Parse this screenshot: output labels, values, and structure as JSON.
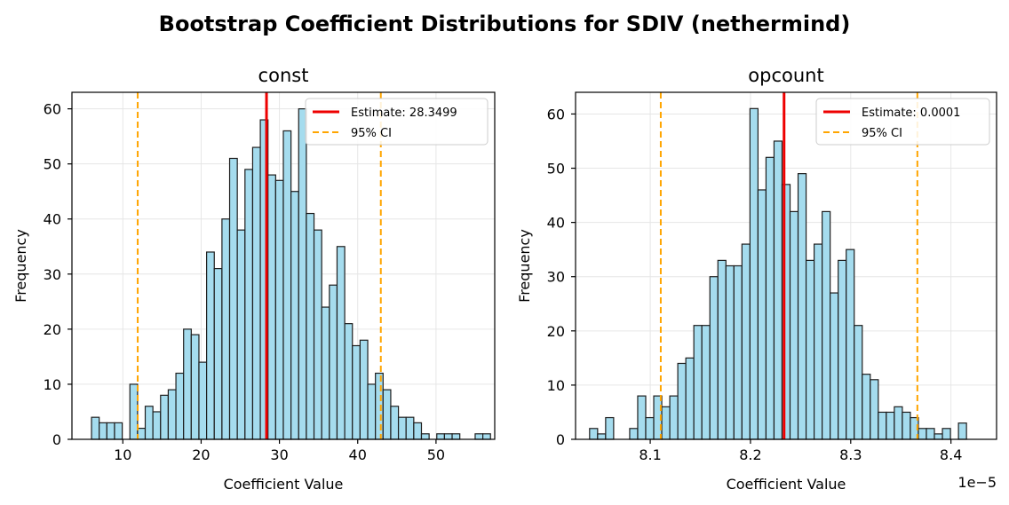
{
  "figure_title": "Bootstrap Coefficient Distributions for SDIV (nethermind)",
  "colors": {
    "bar_fill": "#a5dcee",
    "bar_edge": "#1e1e1e",
    "estimate": "#ee0000",
    "ci": "#ffa500",
    "grid": "#e6e6e6"
  },
  "chart_data": [
    {
      "type": "bar",
      "subtype": "histogram",
      "title": "const",
      "xlabel": "Coefficient Value",
      "ylabel": "Frequency",
      "xlim": [
        3.5,
        57.5
      ],
      "ylim": [
        0,
        63
      ],
      "xticks": [
        10,
        20,
        30,
        40,
        50
      ],
      "yticks": [
        0,
        10,
        20,
        30,
        40,
        50,
        60
      ],
      "bin_start": 6.0,
      "bin_width": 0.98,
      "counts": [
        4,
        3,
        3,
        3,
        0,
        10,
        2,
        6,
        5,
        8,
        9,
        12,
        20,
        19,
        14,
        34,
        31,
        40,
        51,
        38,
        49,
        53,
        58,
        48,
        47,
        56,
        45,
        60,
        41,
        38,
        24,
        28,
        35,
        21,
        17,
        18,
        10,
        12,
        9,
        6,
        4,
        4,
        3,
        1,
        0,
        1,
        1,
        1,
        0,
        0,
        1,
        1
      ],
      "estimate": 28.3499,
      "ci": [
        11.9,
        42.95
      ],
      "legend": {
        "estimate_label": "Estimate: 28.3499",
        "ci_label": "95% CI",
        "position": "upper right"
      },
      "grid": true
    },
    {
      "type": "bar",
      "subtype": "histogram",
      "title": "opcount",
      "xlabel": "Coefficient Value",
      "ylabel": "Frequency",
      "offset_label": "1e−5",
      "xlim": [
        8.0255,
        8.4455
      ],
      "ylim": [
        0,
        64
      ],
      "xticks": [
        8.1,
        8.2,
        8.3,
        8.4
      ],
      "yticks": [
        0,
        10,
        20,
        30,
        40,
        50,
        60
      ],
      "bin_start": 8.0395,
      "bin_width": 0.008,
      "counts": [
        2,
        1,
        4,
        0,
        0,
        2,
        8,
        4,
        8,
        6,
        8,
        14,
        15,
        21,
        21,
        30,
        33,
        32,
        32,
        36,
        61,
        46,
        52,
        55,
        47,
        42,
        49,
        33,
        36,
        42,
        27,
        33,
        35,
        21,
        12,
        11,
        5,
        5,
        6,
        5,
        4,
        2,
        2,
        1,
        2,
        0,
        3
      ],
      "estimate": 8.2335,
      "ci": [
        8.1105,
        8.3665
      ],
      "legend": {
        "estimate_label": "Estimate: 0.0001",
        "ci_label": "95% CI",
        "position": "upper right"
      },
      "grid": true
    }
  ]
}
